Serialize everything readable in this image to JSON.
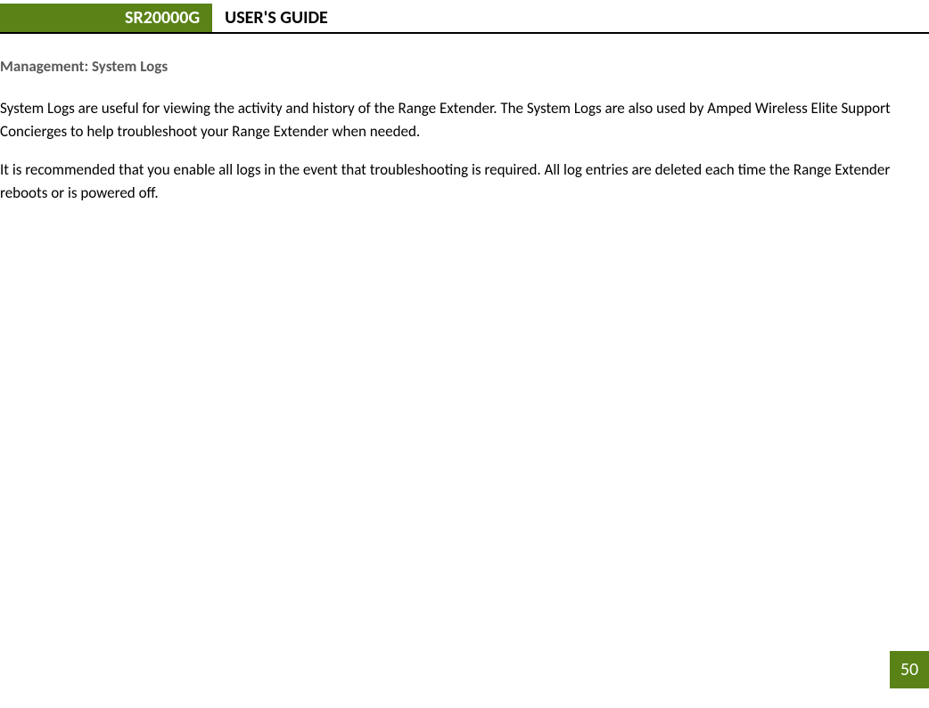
{
  "header": {
    "model": "SR20000G",
    "title": "USER'S GUIDE"
  },
  "section_title": "Management: System Logs",
  "paragraphs": [
    "System Logs are useful for viewing the activity and history of the Range Extender. The System Logs are also used by Amped Wireless Elite Support Concierges to help troubleshoot your Range Extender when needed.",
    "It is recommended that you enable all logs in the event that troubleshooting is required. All log entries are deleted each time the Range Extender reboots or is powered off."
  ],
  "page_number": "50",
  "colors": {
    "brand_green": "#5a8217",
    "section_title_gray": "#595959",
    "text_black": "#000000",
    "background": "#ffffff"
  },
  "typography": {
    "header_fontsize": 20,
    "section_title_fontsize": 17,
    "body_fontsize": 17,
    "page_number_fontsize": 20
  }
}
